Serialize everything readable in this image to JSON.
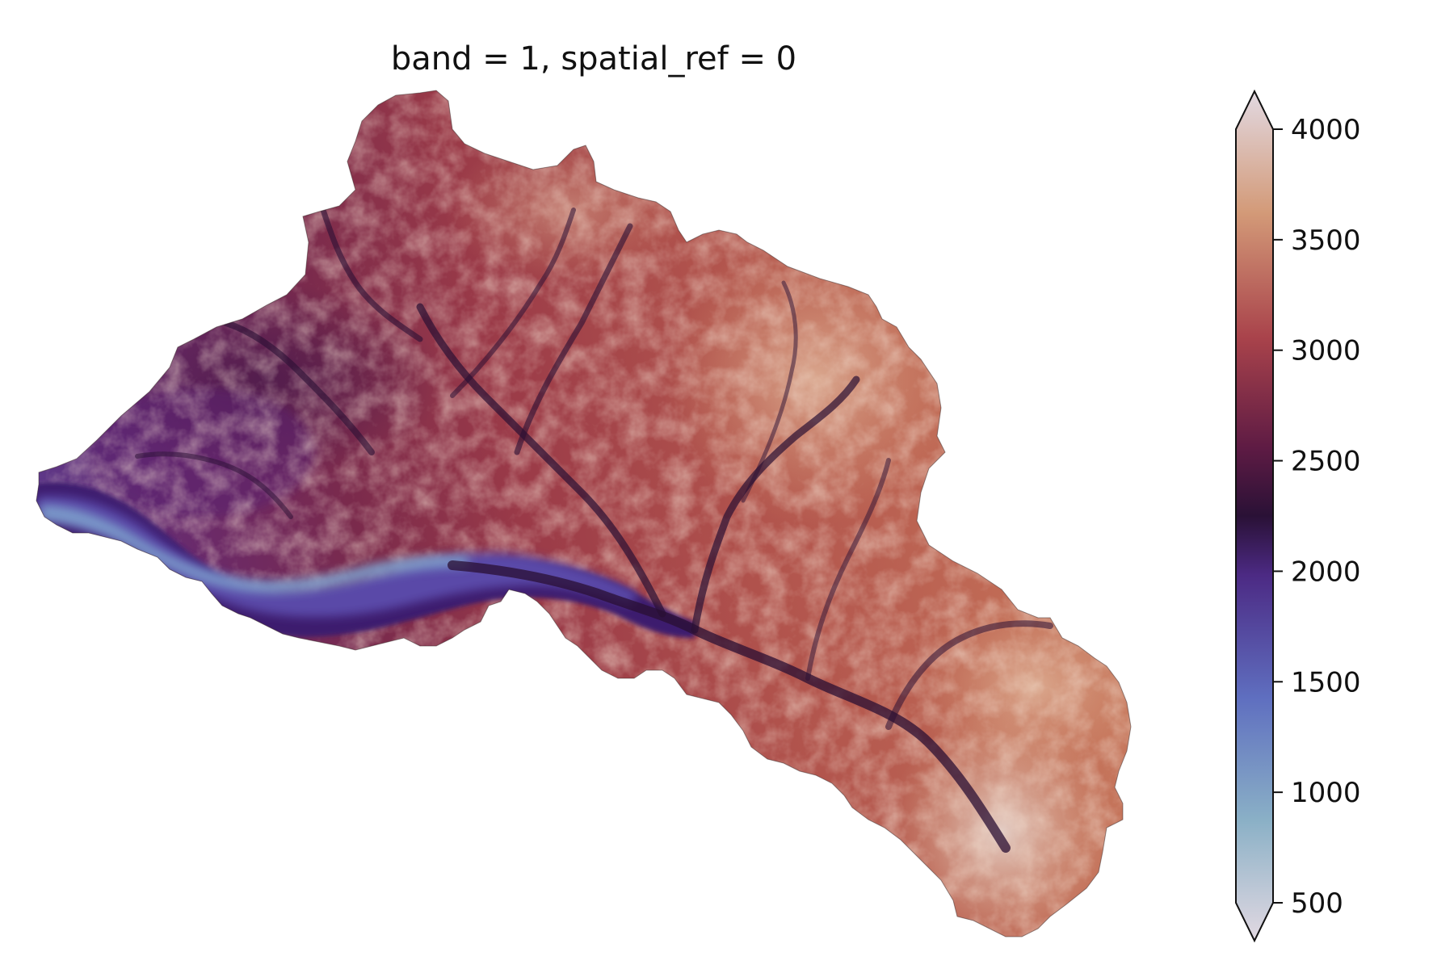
{
  "title": "band = 1, spatial_ref = 0",
  "colormap": "twilight_shifted (lower half)",
  "colorbar": {
    "vmin": 500,
    "vmax": 4000,
    "extend": "both",
    "ticks": [
      "500",
      "1000",
      "1500",
      "2000",
      "2500",
      "3000",
      "3500",
      "4000"
    ],
    "tick_values": [
      500,
      1000,
      1500,
      2000,
      2500,
      3000,
      3500,
      4000
    ]
  },
  "colors": {
    "val_500": "#e2d9e2",
    "val_1000": "#8ab0c6",
    "val_1500": "#5f6fc0",
    "val_2000": "#4c2a84",
    "val_2200": "#2a1136",
    "val_2500": "#5e1b44",
    "val_3000": "#a9434b",
    "val_3500": "#d39a78",
    "val_4000": "#e2d9e2"
  },
  "map": {
    "type": "elevation-raster",
    "description_hidden": false
  }
}
